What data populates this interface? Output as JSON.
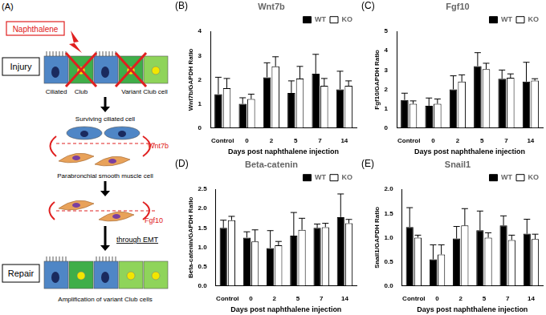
{
  "diagram": {
    "panel": "(A)",
    "naphthalene": "Naphthalene",
    "injury": "Injury",
    "cell_labels": [
      "Ciliated",
      "Club",
      "Variant Club cell"
    ],
    "surviving": "Surviving ciliated cell",
    "wnt7b": "Wnt7b",
    "smooth_muscle": "Parabronchial smooth muscle cell",
    "fgf10": "Fgf10",
    "emt": "through EMT",
    "repair": "Repair",
    "amplification": "Amplification of variant Club cells"
  },
  "chart_data": [
    {
      "type": "bar",
      "panel": "(B)",
      "title": "Wnt7b",
      "x_label": "Days post naphthalene injection",
      "y_label": "Wnt7b/GAPDH Ratio",
      "categories": [
        "Control",
        "0",
        "2",
        "5",
        "7",
        "14"
      ],
      "series": [
        {
          "name": "WT",
          "color": "#000000",
          "values": [
            1.4,
            1.0,
            2.1,
            1.45,
            2.25,
            1.6
          ],
          "errors": [
            0.7,
            0.25,
            0.6,
            0.5,
            0.8,
            0.75
          ]
        },
        {
          "name": "KO",
          "color": "#ffffff",
          "values": [
            1.65,
            1.2,
            2.55,
            2.05,
            1.75,
            1.75
          ],
          "errors": [
            0.4,
            0.2,
            0.4,
            0.5,
            0.3,
            0.2
          ]
        }
      ],
      "ylim": [
        0,
        4
      ],
      "yticks": [
        0,
        1,
        2,
        3,
        4
      ],
      "grid": false,
      "legend": "top-right"
    },
    {
      "type": "bar",
      "panel": "(C)",
      "title": "Fgf10",
      "x_label": "Days post naphthalene injection",
      "y_label": "Fgf10/GAPDH Ratio",
      "categories": [
        "Control",
        "0",
        "2",
        "5",
        "7",
        "14"
      ],
      "series": [
        {
          "name": "WT",
          "color": "#000000",
          "values": [
            1.45,
            1.15,
            2.0,
            3.2,
            2.55,
            2.4
          ],
          "errors": [
            0.35,
            0.4,
            0.7,
            0.7,
            0.45,
            1.0
          ]
        },
        {
          "name": "KO",
          "color": "#ffffff",
          "values": [
            1.25,
            1.25,
            2.4,
            3.05,
            2.6,
            2.45
          ],
          "errors": [
            0.15,
            0.25,
            0.35,
            0.3,
            0.2,
            0.1
          ]
        }
      ],
      "ylim": [
        0,
        5
      ],
      "yticks": [
        0,
        1,
        2,
        3,
        4,
        5
      ],
      "grid": false,
      "legend": "top-right"
    },
    {
      "type": "bar",
      "panel": "(D)",
      "title": "Beta-catenin",
      "x_label": "Days post naphthalene injection",
      "y_label": "Beta-catenin/GAPDH Ratio",
      "categories": [
        "Control",
        "0",
        "2",
        "5",
        "7",
        "14"
      ],
      "series": [
        {
          "name": "WT",
          "color": "#000000",
          "values": [
            1.5,
            1.25,
            0.98,
            1.3,
            1.5,
            1.78
          ],
          "errors": [
            0.2,
            0.15,
            0.45,
            0.6,
            0.1,
            0.6
          ]
        },
        {
          "name": "KO",
          "color": "#ffffff",
          "values": [
            1.7,
            1.15,
            1.05,
            1.45,
            1.52,
            1.62
          ],
          "errors": [
            0.1,
            0.3,
            0.1,
            0.3,
            0.1,
            0.1
          ]
        }
      ],
      "ylim": [
        0,
        2.5
      ],
      "yticks": [
        {
          "value": 0,
          "label": "0.0"
        },
        0.5,
        {
          "value": 1,
          "label": "1.0"
        },
        1.5,
        {
          "value": 2,
          "label": "2.0"
        },
        2.5
      ],
      "grid": false,
      "legend": "top-right"
    },
    {
      "type": "bar",
      "panel": "(E)",
      "title": "Snail1",
      "x_label": "Days post naphthalene injection",
      "y_label": "Snail1/GAPDH Ratio",
      "categories": [
        "Control",
        "0",
        "2",
        "5",
        "7",
        "14"
      ],
      "series": [
        {
          "name": "WT",
          "color": "#000000",
          "values": [
            1.22,
            0.55,
            0.98,
            1.15,
            1.25,
            1.08
          ],
          "errors": [
            0.4,
            0.3,
            0.25,
            0.4,
            0.2,
            0.3
          ]
        },
        {
          "name": "KO",
          "color": "#ffffff",
          "values": [
            1.0,
            0.65,
            1.25,
            1.0,
            0.95,
            0.97
          ],
          "errors": [
            0.05,
            0.2,
            0.35,
            0.1,
            0.1,
            0.1
          ]
        }
      ],
      "ylim": [
        0,
        2
      ],
      "yticks": [
        {
          "value": 0,
          "label": "0.0"
        },
        0.5,
        {
          "value": 1,
          "label": "1.0"
        },
        1.5,
        {
          "value": 2,
          "label": "2.0"
        }
      ],
      "grid": false,
      "legend": "top-right"
    }
  ]
}
